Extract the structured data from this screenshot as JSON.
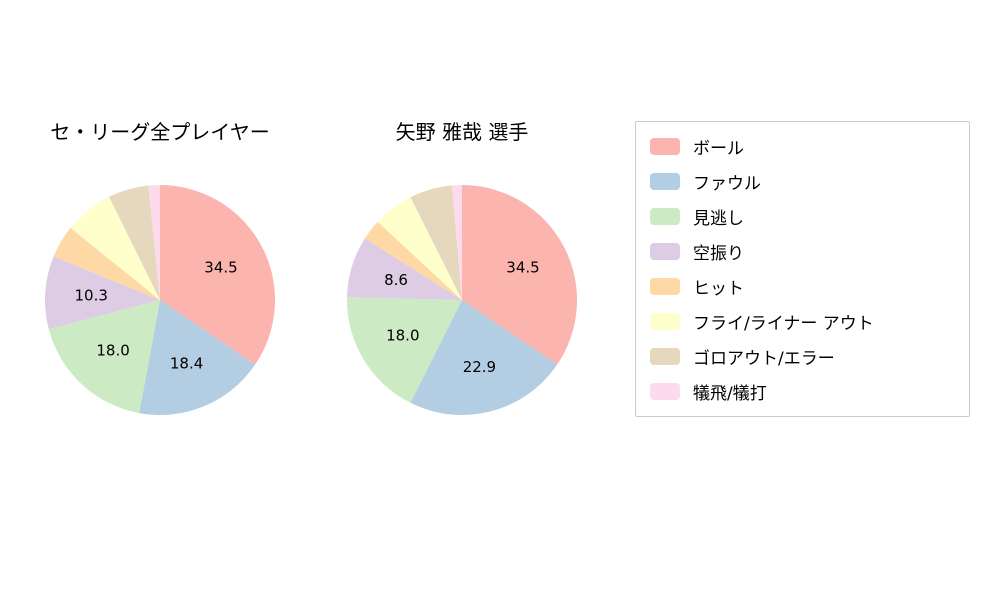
{
  "page": {
    "background_color": "#ffffff",
    "text_color": "#000000"
  },
  "chart_data": [
    {
      "type": "pie",
      "title": "セ・リーグ全プレイヤー",
      "categories": [
        "ボール",
        "ファウル",
        "見逃し",
        "空振り",
        "ヒット",
        "フライ/ライナー アウト",
        "ゴロアウト/エラー",
        "犠飛/犠打"
      ],
      "values": [
        34.5,
        18.4,
        18.0,
        10.3,
        4.6,
        6.9,
        5.7,
        1.6
      ],
      "labels_shown": [
        "34.5",
        "18.4",
        "18.0",
        "10.3"
      ],
      "label_min_value": 8,
      "start_angle_deg": 90,
      "direction": "clockwise",
      "colors": [
        "#fbb4ae",
        "#b3cde3",
        "#ccebc5",
        "#decbe4",
        "#fed9a6",
        "#ffffcc",
        "#e5d8bd",
        "#fddaec"
      ]
    },
    {
      "type": "pie",
      "title": "矢野 雅哉  選手",
      "categories": [
        "ボール",
        "ファウル",
        "見逃し",
        "空振り",
        "ヒット",
        "フライ/ライナー アウト",
        "ゴロアウト/エラー",
        "犠飛/犠打"
      ],
      "values": [
        34.5,
        22.9,
        18.0,
        8.6,
        2.9,
        5.7,
        6.0,
        1.4
      ],
      "labels_shown": [
        "34.5",
        "22.9",
        "18.0",
        "8.6"
      ],
      "label_min_value": 8,
      "start_angle_deg": 90,
      "direction": "clockwise",
      "colors": [
        "#fbb4ae",
        "#b3cde3",
        "#ccebc5",
        "#decbe4",
        "#fed9a6",
        "#ffffcc",
        "#e5d8bd",
        "#fddaec"
      ]
    }
  ],
  "legend": {
    "position": "right",
    "border_color": "#cccccc",
    "entries": [
      {
        "label": "ボール",
        "color": "#fbb4ae"
      },
      {
        "label": "ファウル",
        "color": "#b3cde3"
      },
      {
        "label": "見逃し",
        "color": "#ccebc5"
      },
      {
        "label": "空振り",
        "color": "#decbe4"
      },
      {
        "label": "ヒット",
        "color": "#fed9a6"
      },
      {
        "label": "フライ/ライナー アウト",
        "color": "#ffffcc"
      },
      {
        "label": "ゴロアウト/エラー",
        "color": "#e5d8bd"
      },
      {
        "label": "犠飛/犠打",
        "color": "#fddaec"
      }
    ]
  }
}
